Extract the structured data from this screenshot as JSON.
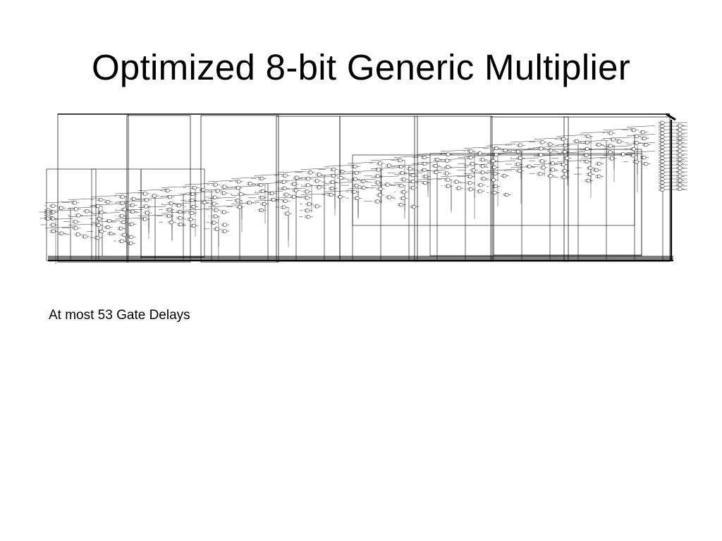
{
  "slide": {
    "title": "Optimized 8-bit Generic Multiplier",
    "caption": "At most 53 Gate Delays"
  },
  "diagram": {
    "kind": "gate-level circuit schematic",
    "line_color": "#000000"
  }
}
